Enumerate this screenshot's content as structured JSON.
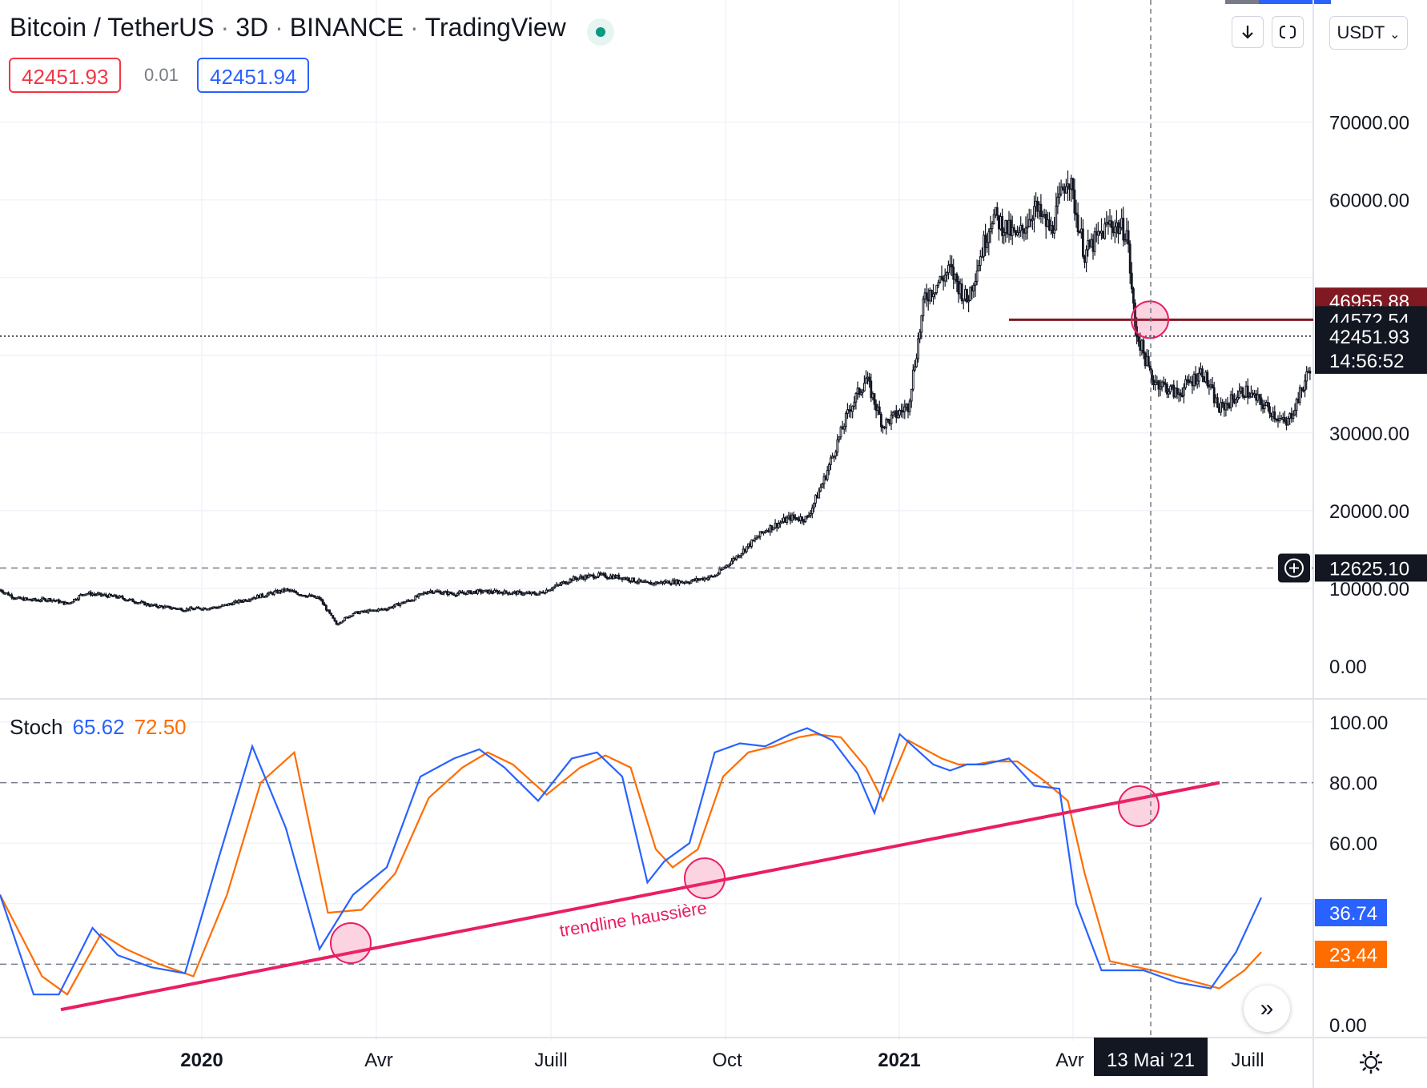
{
  "header": {
    "symbol": "Bitcoin / TetherUS",
    "interval": "3D",
    "exchange": "BINANCE",
    "source": "TradingView",
    "bid": "42451.93",
    "spread": "0.01",
    "ask": "42451.94",
    "currency": "USDT"
  },
  "colors": {
    "up": "#131722",
    "down": "#131722",
    "k_line": "#2962ff",
    "d_line": "#ff6d00",
    "trendline": "#e91e63",
    "resistance": "#801922"
  },
  "icons": [
    "download-arrow-icon",
    "fullscreen-icon",
    "chevron-down-icon",
    "crosshair-plus-icon",
    "fast-forward-icon",
    "gear-icon"
  ],
  "price_axis": {
    "ticks": [
      "70000.00",
      "60000.00",
      "30000.00",
      "20000.00",
      "10000.00",
      "0.00"
    ],
    "tick_values": [
      70000,
      60000,
      30000,
      20000,
      10000,
      0
    ]
  },
  "price_labels": [
    {
      "text": "46955.88",
      "value": 46955.88,
      "bg": "#801922"
    },
    {
      "text": "44572.54",
      "value": 44572.54,
      "bg": "#131722"
    },
    {
      "text": "42451.93",
      "value": 42451.93,
      "bg": "#131722"
    },
    {
      "text": "14:56:52",
      "value": 39800,
      "bg": "#131722"
    },
    {
      "text": "12625.10",
      "value": 12625.1,
      "bg": "#131722"
    }
  ],
  "stoch": {
    "label": "Stoch",
    "k_value": "65.62",
    "d_value": "72.50",
    "axis_ticks": [
      "100.00",
      "80.00",
      "60.00",
      "0.00"
    ],
    "axis_values": [
      100,
      80,
      60,
      0
    ],
    "k_label": "36.74",
    "d_label": "23.44"
  },
  "time_axis": {
    "labels": [
      "2020",
      "Avr",
      "Juill",
      "Oct",
      "2021",
      "Avr",
      "Juill"
    ],
    "crosshair_label": "13 Mai '21"
  },
  "annotations": {
    "trendline_text": "trendline haussière"
  },
  "chart_data": {
    "type": "candlestick",
    "price_ylim": [
      0,
      75000
    ],
    "horizontal_levels": [
      44572.54,
      42451.93,
      12625.1
    ],
    "price_path": [
      [
        0,
        9800
      ],
      [
        10,
        8700
      ],
      [
        20,
        8500
      ],
      [
        30,
        8600
      ],
      [
        40,
        8000
      ],
      [
        50,
        9400
      ],
      [
        70,
        8900
      ],
      [
        90,
        7800
      ],
      [
        110,
        7300
      ],
      [
        130,
        7600
      ],
      [
        150,
        8800
      ],
      [
        170,
        9800
      ],
      [
        180,
        9200
      ],
      [
        190,
        8700
      ],
      [
        200,
        5400
      ],
      [
        210,
        6800
      ],
      [
        230,
        7400
      ],
      [
        245,
        8600
      ],
      [
        255,
        9700
      ],
      [
        270,
        9300
      ],
      [
        285,
        9600
      ],
      [
        300,
        9500
      ],
      [
        320,
        9300
      ],
      [
        340,
        11200
      ],
      [
        355,
        11700
      ],
      [
        370,
        11400
      ],
      [
        385,
        10600
      ],
      [
        395,
        10800
      ],
      [
        410,
        10900
      ],
      [
        425,
        11600
      ],
      [
        440,
        14500
      ],
      [
        455,
        17500
      ],
      [
        470,
        19100
      ],
      [
        480,
        19000
      ],
      [
        490,
        24000
      ],
      [
        505,
        33000
      ],
      [
        515,
        37000
      ],
      [
        525,
        31000
      ],
      [
        540,
        33500
      ],
      [
        550,
        47500
      ],
      [
        565,
        51000
      ],
      [
        575,
        47000
      ],
      [
        590,
        58000
      ],
      [
        605,
        55000
      ],
      [
        615,
        59000
      ],
      [
        625,
        56000
      ],
      [
        635,
        63500
      ],
      [
        645,
        53000
      ],
      [
        660,
        57000
      ],
      [
        670,
        56000
      ],
      [
        675,
        43500
      ],
      [
        685,
        37000
      ],
      [
        700,
        35000
      ],
      [
        715,
        38000
      ],
      [
        725,
        33000
      ],
      [
        740,
        35500
      ],
      [
        755,
        33000
      ],
      [
        765,
        31000
      ],
      [
        775,
        36000
      ],
      [
        785,
        42400
      ]
    ],
    "stoch_k": [
      [
        0,
        43
      ],
      [
        20,
        10
      ],
      [
        35,
        10
      ],
      [
        55,
        32
      ],
      [
        70,
        23
      ],
      [
        90,
        19
      ],
      [
        110,
        17
      ],
      [
        130,
        55
      ],
      [
        150,
        92
      ],
      [
        170,
        65
      ],
      [
        190,
        25
      ],
      [
        210,
        43
      ],
      [
        230,
        52
      ],
      [
        250,
        82
      ],
      [
        270,
        88
      ],
      [
        285,
        91
      ],
      [
        300,
        85
      ],
      [
        320,
        74
      ],
      [
        340,
        88
      ],
      [
        355,
        90
      ],
      [
        370,
        82
      ],
      [
        385,
        47
      ],
      [
        395,
        54
      ],
      [
        410,
        60
      ],
      [
        425,
        90
      ],
      [
        440,
        93
      ],
      [
        455,
        92
      ],
      [
        470,
        96
      ],
      [
        480,
        98
      ],
      [
        495,
        94
      ],
      [
        510,
        83
      ],
      [
        520,
        70
      ],
      [
        535,
        96
      ],
      [
        555,
        86
      ],
      [
        565,
        84
      ],
      [
        575,
        86
      ],
      [
        585,
        86
      ],
      [
        600,
        88
      ],
      [
        615,
        79
      ],
      [
        630,
        78
      ],
      [
        640,
        40
      ],
      [
        655,
        18
      ],
      [
        680,
        18
      ],
      [
        700,
        14
      ],
      [
        720,
        12
      ],
      [
        735,
        24
      ],
      [
        750,
        42
      ]
    ],
    "stoch_d": [
      [
        0,
        43
      ],
      [
        25,
        16
      ],
      [
        40,
        10
      ],
      [
        60,
        30
      ],
      [
        75,
        25
      ],
      [
        95,
        20
      ],
      [
        115,
        16
      ],
      [
        135,
        43
      ],
      [
        155,
        80
      ],
      [
        175,
        90
      ],
      [
        195,
        37
      ],
      [
        215,
        38
      ],
      [
        235,
        50
      ],
      [
        255,
        75
      ],
      [
        275,
        85
      ],
      [
        290,
        90
      ],
      [
        305,
        86
      ],
      [
        325,
        76
      ],
      [
        345,
        85
      ],
      [
        360,
        89
      ],
      [
        375,
        85
      ],
      [
        390,
        58
      ],
      [
        400,
        52
      ],
      [
        415,
        58
      ],
      [
        430,
        82
      ],
      [
        445,
        90
      ],
      [
        460,
        92
      ],
      [
        475,
        95
      ],
      [
        485,
        96
      ],
      [
        500,
        95
      ],
      [
        515,
        85
      ],
      [
        525,
        74
      ],
      [
        540,
        94
      ],
      [
        560,
        88
      ],
      [
        570,
        86
      ],
      [
        580,
        86
      ],
      [
        590,
        87
      ],
      [
        605,
        87
      ],
      [
        620,
        81
      ],
      [
        635,
        74
      ],
      [
        645,
        50
      ],
      [
        660,
        21
      ],
      [
        685,
        18
      ],
      [
        705,
        15
      ],
      [
        725,
        12
      ],
      [
        740,
        18
      ],
      [
        750,
        24
      ]
    ],
    "trendline": {
      "from": [
        10,
        5
      ],
      "to": [
        630,
        80
      ]
    }
  }
}
